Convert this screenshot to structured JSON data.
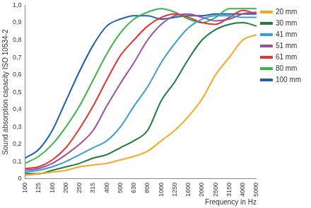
{
  "chart_data": {
    "type": "line",
    "y_label": "Sound absorption capacity ISO 10534-2",
    "x_label": "Frequency in Hz",
    "categories": [
      "100",
      "125",
      "160",
      "200",
      "250",
      "315",
      "400",
      "500",
      "630",
      "800",
      "1000",
      "1250",
      "1600",
      "2000",
      "2500",
      "3150",
      "4000",
      "5000"
    ],
    "series": [
      {
        "name": "20 mm",
        "color": "#f5a623",
        "values": [
          0.02,
          0.03,
          0.04,
          0.05,
          0.07,
          0.08,
          0.09,
          0.11,
          0.13,
          0.16,
          0.22,
          0.28,
          0.36,
          0.46,
          0.6,
          0.7,
          0.8,
          0.83
        ]
      },
      {
        "name": "30 mm",
        "color": "#1e7b3c",
        "values": [
          0.03,
          0.03,
          0.05,
          0.07,
          0.09,
          0.12,
          0.14,
          0.18,
          0.22,
          0.28,
          0.45,
          0.56,
          0.69,
          0.8,
          0.86,
          0.89,
          0.9,
          0.88
        ]
      },
      {
        "name": "41 mm",
        "color": "#3a9bd5",
        "values": [
          0.04,
          0.05,
          0.07,
          0.1,
          0.14,
          0.18,
          0.22,
          0.3,
          0.42,
          0.53,
          0.67,
          0.78,
          0.87,
          0.92,
          0.94,
          0.94,
          0.93,
          0.93
        ]
      },
      {
        "name": "51 mm",
        "color": "#9b4f9e",
        "values": [
          0.05,
          0.06,
          0.09,
          0.14,
          0.2,
          0.28,
          0.42,
          0.55,
          0.67,
          0.8,
          0.89,
          0.94,
          0.95,
          0.93,
          0.91,
          0.92,
          0.95,
          0.96
        ]
      },
      {
        "name": "61 mm",
        "color": "#e3342f",
        "values": [
          0.06,
          0.07,
          0.11,
          0.18,
          0.29,
          0.42,
          0.57,
          0.71,
          0.8,
          0.88,
          0.93,
          0.95,
          0.93,
          0.9,
          0.89,
          0.93,
          0.97,
          0.95
        ]
      },
      {
        "name": "80 mm",
        "color": "#3cb44b",
        "values": [
          0.09,
          0.13,
          0.2,
          0.3,
          0.42,
          0.57,
          0.72,
          0.84,
          0.92,
          0.96,
          0.98,
          0.96,
          0.92,
          0.9,
          0.93,
          0.98,
          0.98,
          0.98
        ]
      },
      {
        "name": "100 mm",
        "color": "#1f5fa8",
        "values": [
          0.12,
          0.17,
          0.28,
          0.45,
          0.62,
          0.77,
          0.88,
          0.92,
          0.94,
          0.94,
          0.92,
          0.93,
          0.94,
          0.94,
          0.95,
          0.95,
          0.95,
          0.95
        ]
      }
    ],
    "ylim": [
      0,
      1
    ],
    "yticks": [
      0,
      {
        "value": 0.1,
        "label": "0,1"
      },
      {
        "value": 0.2,
        "label": "0,2"
      },
      {
        "value": 0.3,
        "label": "0,3"
      },
      {
        "value": 0.4,
        "label": "0,4"
      },
      {
        "value": 0.5,
        "label": "0,5"
      },
      {
        "value": 0.6,
        "label": "0,6"
      },
      {
        "value": 0.7,
        "label": "0,7"
      },
      {
        "value": 0.8,
        "label": "0,8"
      },
      {
        "value": 0.9,
        "label": "0,9"
      },
      {
        "value": 1,
        "label": "1,0"
      }
    ],
    "grid": false,
    "legend": "right",
    "marker": "none",
    "line_style": "smooth"
  }
}
